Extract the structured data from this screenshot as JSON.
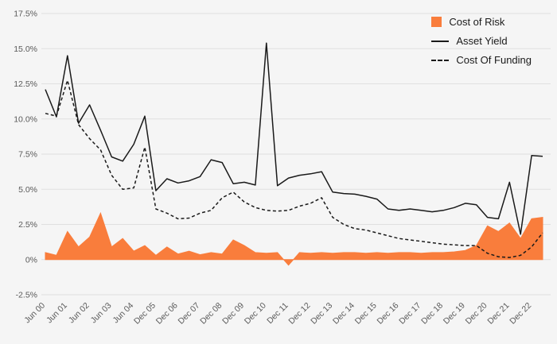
{
  "colors": {
    "background": "#f5f5f5",
    "grid": "#e0e0e0",
    "line": "#1a1a1a",
    "area": "#f97d3c",
    "text": "#595959"
  },
  "chart_data": {
    "type": "line",
    "title": "",
    "xlabel": "",
    "ylabel": "",
    "ylim": [
      -2.5,
      17.5
    ],
    "grid": true,
    "legend_position": "top-right",
    "y_ticks": [
      {
        "v": 17.5,
        "label": "17.5%"
      },
      {
        "v": 15.0,
        "label": "15.0%"
      },
      {
        "v": 12.5,
        "label": "12.5%"
      },
      {
        "v": 10.0,
        "label": "10.0%"
      },
      {
        "v": 7.5,
        "label": "7.5%"
      },
      {
        "v": 5.0,
        "label": "5.0%"
      },
      {
        "v": 2.5,
        "label": "2.5%"
      },
      {
        "v": 0,
        "label": "0%"
      },
      {
        "v": -2.5,
        "label": "-2.5%"
      }
    ],
    "x_tick_labels": [
      "Jun 00",
      "Jun 01",
      "Jun 02",
      "Jun 03",
      "Jun 04",
      "Dec 05",
      "Dec 06",
      "Dec 07",
      "Dec 08",
      "Dec 09",
      "Dec 10",
      "Dec 11",
      "Dec 12",
      "Dec 13",
      "Dec 14",
      "Dec 15",
      "Dec 16",
      "Dec 17",
      "Dec 18",
      "Dec 19",
      "Dec 20",
      "Dec 21",
      "Dec 22"
    ],
    "x_tick_indices": [
      0,
      2,
      4,
      6,
      8,
      10,
      12,
      14,
      16,
      18,
      20,
      22,
      24,
      26,
      28,
      30,
      32,
      34,
      36,
      38,
      40,
      42,
      44
    ],
    "series": [
      {
        "name": "Cost of Risk",
        "type": "area",
        "color": "#f97d3c",
        "dash": false,
        "values": [
          0.5,
          0.3,
          2.0,
          0.9,
          1.6,
          3.3,
          0.9,
          1.5,
          0.6,
          1.0,
          0.3,
          0.9,
          0.4,
          0.6,
          0.35,
          0.5,
          0.4,
          1.4,
          1.0,
          0.5,
          0.45,
          0.5,
          -0.4,
          0.5,
          0.45,
          0.5,
          0.45,
          0.5,
          0.5,
          0.45,
          0.5,
          0.45,
          0.5,
          0.5,
          0.45,
          0.5,
          0.5,
          0.55,
          0.65,
          1.0,
          2.4,
          2.0,
          2.6,
          1.5,
          2.9,
          3.0
        ]
      },
      {
        "name": "Asset Yield",
        "type": "line",
        "color": "#1a1a1a",
        "dash": false,
        "values": [
          12.1,
          10.15,
          14.5,
          9.7,
          11.0,
          9.2,
          7.3,
          7.0,
          8.2,
          10.2,
          4.9,
          5.75,
          5.45,
          5.6,
          5.9,
          7.1,
          6.9,
          5.4,
          5.5,
          5.3,
          15.4,
          5.25,
          5.8,
          6.0,
          6.1,
          6.25,
          4.8,
          4.7,
          4.65,
          4.5,
          4.3,
          3.6,
          3.5,
          3.6,
          3.5,
          3.4,
          3.5,
          3.7,
          4.0,
          3.9,
          3.0,
          2.9,
          5.5,
          1.8,
          7.4,
          7.35
        ]
      },
      {
        "name": "Cost Of Funding",
        "type": "line",
        "color": "#1a1a1a",
        "dash": true,
        "values": [
          10.4,
          10.2,
          12.75,
          9.6,
          8.6,
          7.8,
          6.0,
          5.0,
          5.1,
          8.0,
          3.6,
          3.3,
          2.9,
          2.95,
          3.3,
          3.5,
          4.4,
          4.8,
          4.1,
          3.7,
          3.5,
          3.45,
          3.5,
          3.8,
          4.0,
          4.4,
          3.0,
          2.5,
          2.2,
          2.1,
          1.9,
          1.7,
          1.5,
          1.4,
          1.3,
          1.2,
          1.1,
          1.05,
          1.0,
          1.0,
          0.45,
          0.2,
          0.15,
          0.3,
          0.9,
          1.9
        ]
      }
    ]
  }
}
